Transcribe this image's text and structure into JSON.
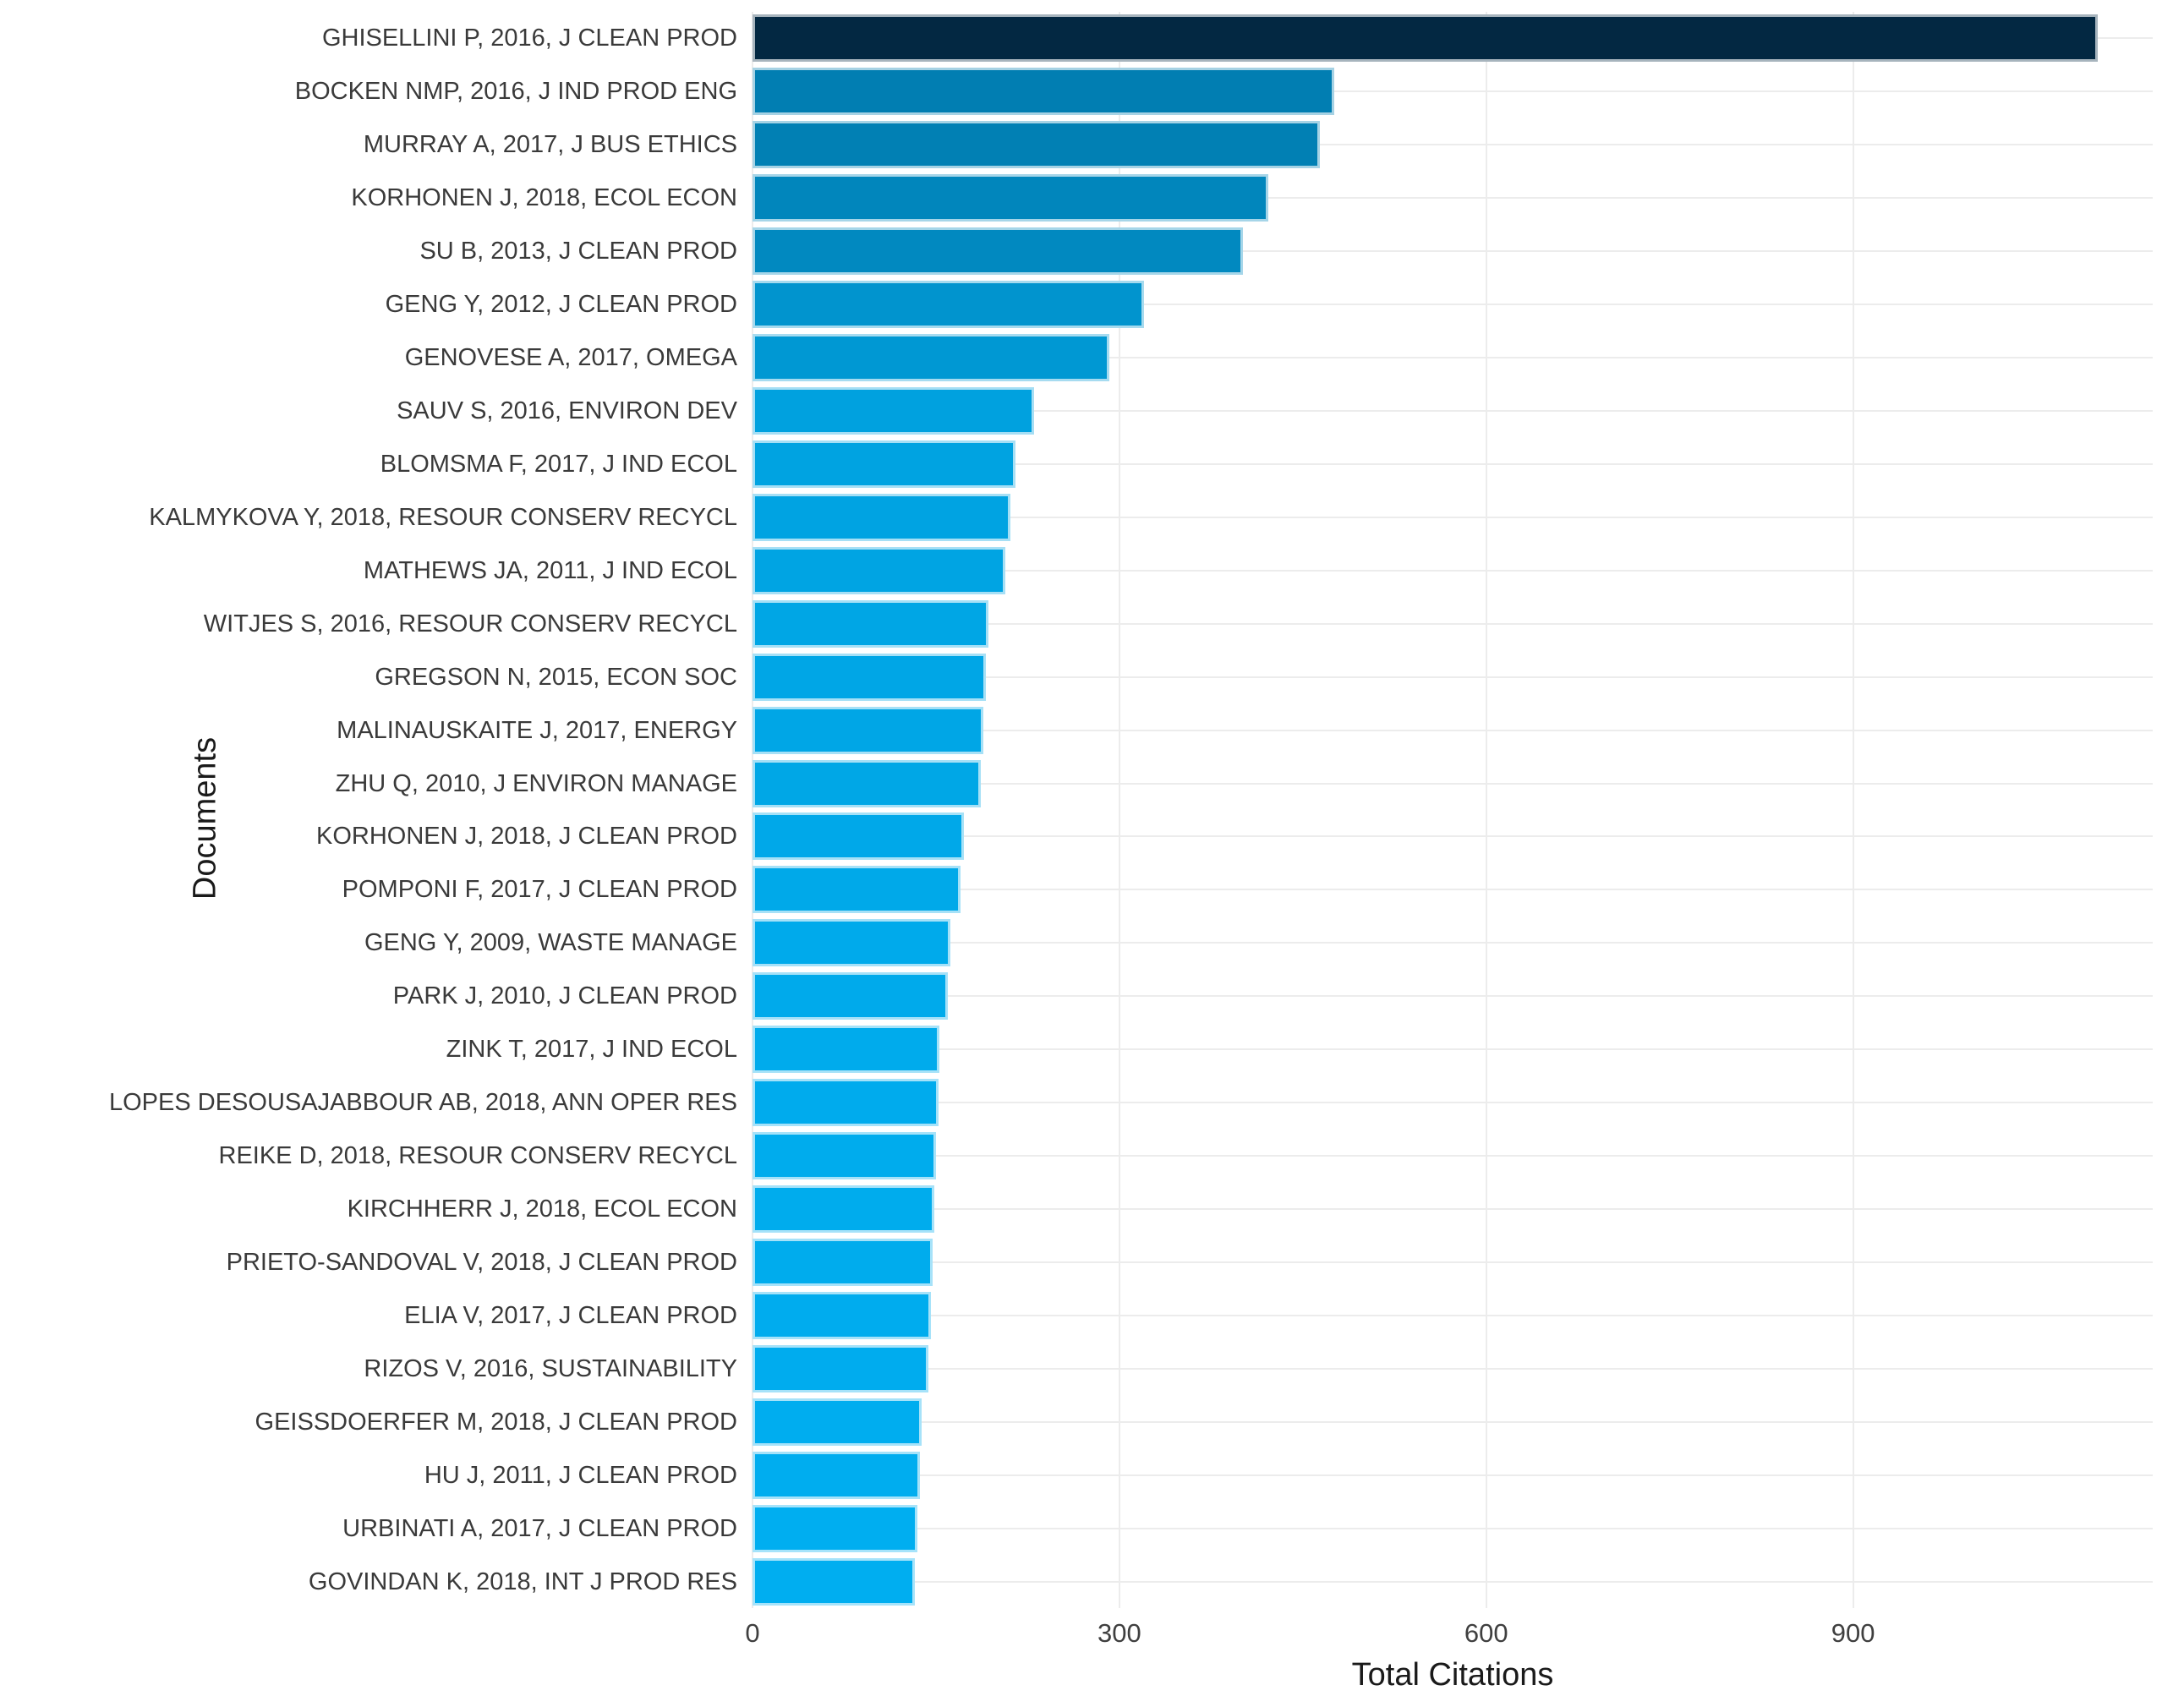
{
  "chart_data": {
    "type": "bar",
    "orientation": "horizontal",
    "title": "",
    "xlabel": "Total Citations",
    "ylabel": "Documents",
    "categories": [
      "GHISELLINI P, 2016, J CLEAN PROD",
      "BOCKEN NMP, 2016, J IND PROD ENG",
      "MURRAY A, 2017, J BUS ETHICS",
      "KORHONEN J, 2018, ECOL ECON",
      "SU B, 2013, J CLEAN PROD",
      "GENG Y, 2012, J CLEAN PROD",
      "GENOVESE A, 2017, OMEGA",
      "SAUV S, 2016, ENVIRON DEV",
      "BLOMSMA F, 2017, J IND ECOL",
      "KALMYKOVA Y, 2018, RESOUR CONSERV RECYCL",
      "MATHEWS JA, 2011, J IND ECOL",
      "WITJES S, 2016, RESOUR CONSERV RECYCL",
      "GREGSON N, 2015, ECON SOC",
      "MALINAUSKAITE J, 2017, ENERGY",
      "ZHU Q, 2010, J ENVIRON MANAGE",
      "KORHONEN J, 2018, J CLEAN PROD",
      "POMPONI F, 2017, J CLEAN PROD",
      "GENG Y, 2009, WASTE MANAGE",
      "PARK J, 2010, J CLEAN PROD",
      "ZINK T, 2017, J IND ECOL",
      "LOPES DESOUSAJABBOUR AB, 2018, ANN OPER RES",
      "REIKE D, 2018, RESOUR CONSERV RECYCL",
      "KIRCHHERR J, 2018, ECOL ECON",
      "PRIETO-SANDOVAL V, 2018, J CLEAN PROD",
      "ELIA V, 2017, J CLEAN PROD",
      "RIZOS V, 2016, SUSTAINABILITY",
      "GEISSDOERFER M, 2018, J CLEAN PROD",
      "HU J, 2011, J CLEAN PROD",
      "URBINATI A, 2017, J CLEAN PROD",
      "GOVINDAN K, 2018, INT J PROD RES"
    ],
    "values": [
      1100,
      476,
      464,
      422,
      401,
      320,
      292,
      230,
      215,
      211,
      207,
      193,
      191,
      189,
      187,
      173,
      170,
      162,
      160,
      153,
      152,
      150,
      149,
      147,
      146,
      144,
      138,
      137,
      135,
      133
    ],
    "xticks": [
      0,
      300,
      600,
      900
    ],
    "xtick_labels": [
      "0",
      "300",
      "600",
      "900"
    ],
    "xlim": [
      0,
      1145
    ],
    "grid": "light gray major x gridlines and one horizontal gridline per category",
    "legend": "none",
    "colors": {
      "background": "#FFFFFF",
      "bar_color_low_value": "#00AEF0",
      "bar_color_high_value": "#032842",
      "gridline": "#ECECEC",
      "category_text": "#3A3A3A",
      "tick_text": "#3F3F3F",
      "axis_title_text": "#1A1A1A"
    }
  }
}
